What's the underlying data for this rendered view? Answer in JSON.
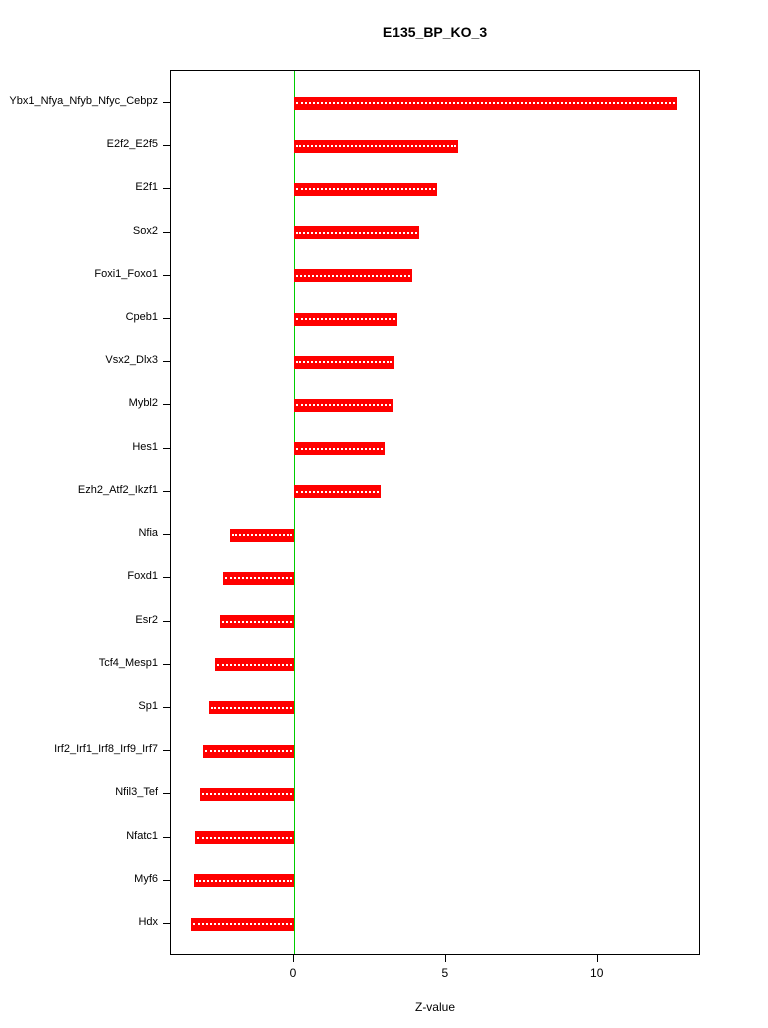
{
  "chart_data": {
    "type": "bar",
    "orientation": "horizontal",
    "title": "E135_BP_KO_3",
    "xlabel": "Z-value",
    "ylabel": "",
    "categories": [
      "Ybx1_Nfya_Nfyb_Nfyc_Cebpz",
      "E2f2_E2f5",
      "E2f1",
      "Sox2",
      "Foxi1_Foxo1",
      "Cpeb1",
      "Vsx2_Dlx3",
      "Mybl2",
      "Hes1",
      "Ezh2_Atf2_Ikzf1",
      "Nfia",
      "Foxd1",
      "Esr2",
      "Tcf4_Mesp1",
      "Sp1",
      "Irf2_Irf1_Irf8_Irf9_Irf7",
      "Nfil3_Tef",
      "Nfatc1",
      "Myf6",
      "Hdx"
    ],
    "values": [
      12.6,
      5.4,
      4.7,
      4.1,
      3.9,
      3.4,
      3.3,
      3.25,
      3.0,
      2.85,
      -2.1,
      -2.35,
      -2.45,
      -2.6,
      -2.8,
      -3.0,
      -3.1,
      -3.25,
      -3.3,
      -3.4
    ],
    "x_ticks": [
      0,
      5,
      10
    ],
    "xlim": [
      -4.05,
      13.4
    ],
    "bar_color": "#ff0000",
    "zero_line_color": "#00cd00",
    "grid": false,
    "legend": "none"
  }
}
